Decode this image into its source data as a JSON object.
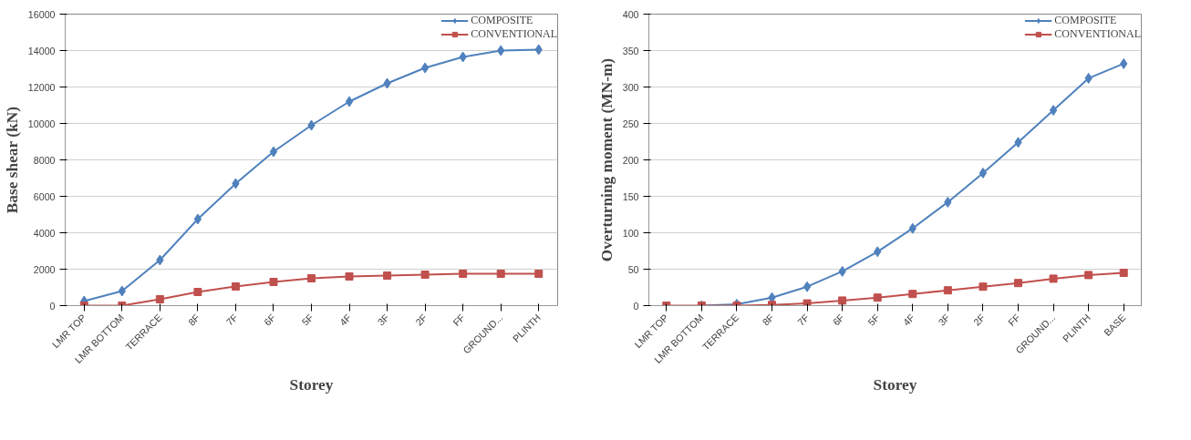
{
  "chart_data": [
    {
      "type": "line",
      "xlabel": "Storey",
      "ylabel": "Base shear (kN)",
      "categories": [
        "LMR TOP",
        "LMR BOTTOM",
        "TERRACE",
        "8F",
        "7F",
        "6F",
        "5F",
        "4F",
        "3F",
        "2F",
        "FF",
        "GROUND...",
        "PLINTH"
      ],
      "series": [
        {
          "name": "COMPOSITE",
          "color": "#4f81bd",
          "marker": "diamond",
          "values": [
            250,
            800,
            2500,
            4750,
            6700,
            8450,
            9900,
            11200,
            12200,
            13050,
            13650,
            14000,
            14050
          ]
        },
        {
          "name": "CONVENTIONAL",
          "color": "#c0504d",
          "marker": "square",
          "values": [
            0,
            0,
            350,
            750,
            1050,
            1300,
            1500,
            1600,
            1650,
            1700,
            1750,
            1750,
            1750
          ]
        }
      ],
      "ylim": [
        0,
        16000
      ],
      "yticks": [
        0,
        2000,
        4000,
        6000,
        8000,
        10000,
        12000,
        14000,
        16000
      ],
      "grid": "y",
      "legend": "top right",
      "line_style": "solid"
    },
    {
      "type": "line",
      "xlabel": "Storey",
      "ylabel": "Overturning moment (MN-m)",
      "categories": [
        "LMR TOP",
        "LMR BOTTOM",
        "TERRACE",
        "8F",
        "7F",
        "6F",
        "5F",
        "4F",
        "3F",
        "2F",
        "FF",
        "GROUND...",
        "PLINTH",
        "BASE"
      ],
      "series": [
        {
          "name": "COMPOSITE",
          "color": "#4f81bd",
          "marker": "diamond",
          "values": [
            null,
            0,
            2,
            11,
            26,
            47,
            74,
            106,
            142,
            182,
            224,
            268,
            312,
            332
          ]
        },
        {
          "name": "CONVENTIONAL",
          "color": "#c0504d",
          "marker": "square",
          "values": [
            0,
            0,
            0,
            1,
            3,
            7,
            11,
            16,
            21,
            26,
            31,
            37,
            42,
            45
          ]
        }
      ],
      "ylim": [
        0,
        400
      ],
      "yticks": [
        0,
        50,
        100,
        150,
        200,
        250,
        300,
        350,
        400
      ],
      "grid": "y",
      "legend": "top right",
      "line_style": "solid"
    }
  ]
}
